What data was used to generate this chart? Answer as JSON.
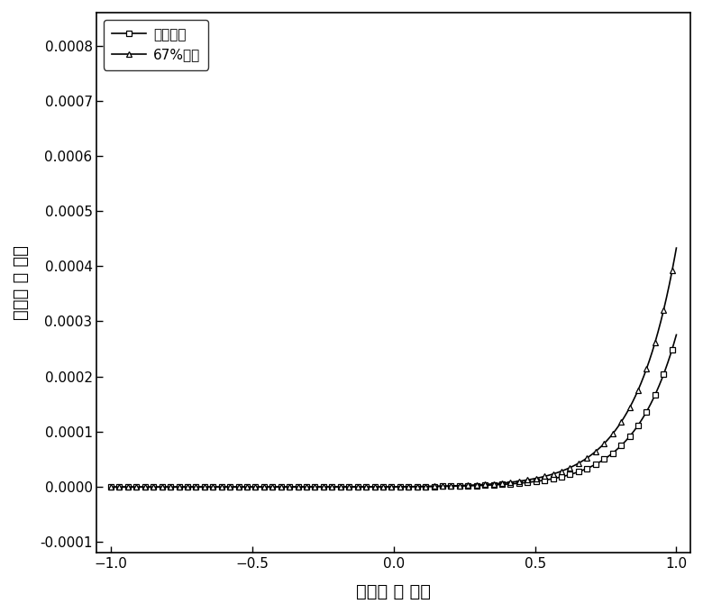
{
  "xlabel": "电压（ 伏 特）",
  "ylabel": "电流（ 安 培）",
  "xlim": [
    -1.05,
    1.05
  ],
  "ylim": [
    -0.00012,
    0.00086
  ],
  "yticks": [
    -0.0001,
    0.0,
    0.0001,
    0.0002,
    0.0003,
    0.0004,
    0.0005,
    0.0006,
    0.0007,
    0.0008
  ],
  "xticks": [
    -1.0,
    -0.5,
    0.0,
    0.5,
    1.0
  ],
  "legend1": "干燥空气",
  "legend2": "67%湿度",
  "line_color": "#000000",
  "background_color": "#ffffff",
  "diode_Is_dry": 3.5e-07,
  "diode_n_dry": 5.8,
  "diode_Is_humid": 5.5e-07,
  "diode_n_humid": 5.8,
  "n_points": 400,
  "marker_every": 6
}
